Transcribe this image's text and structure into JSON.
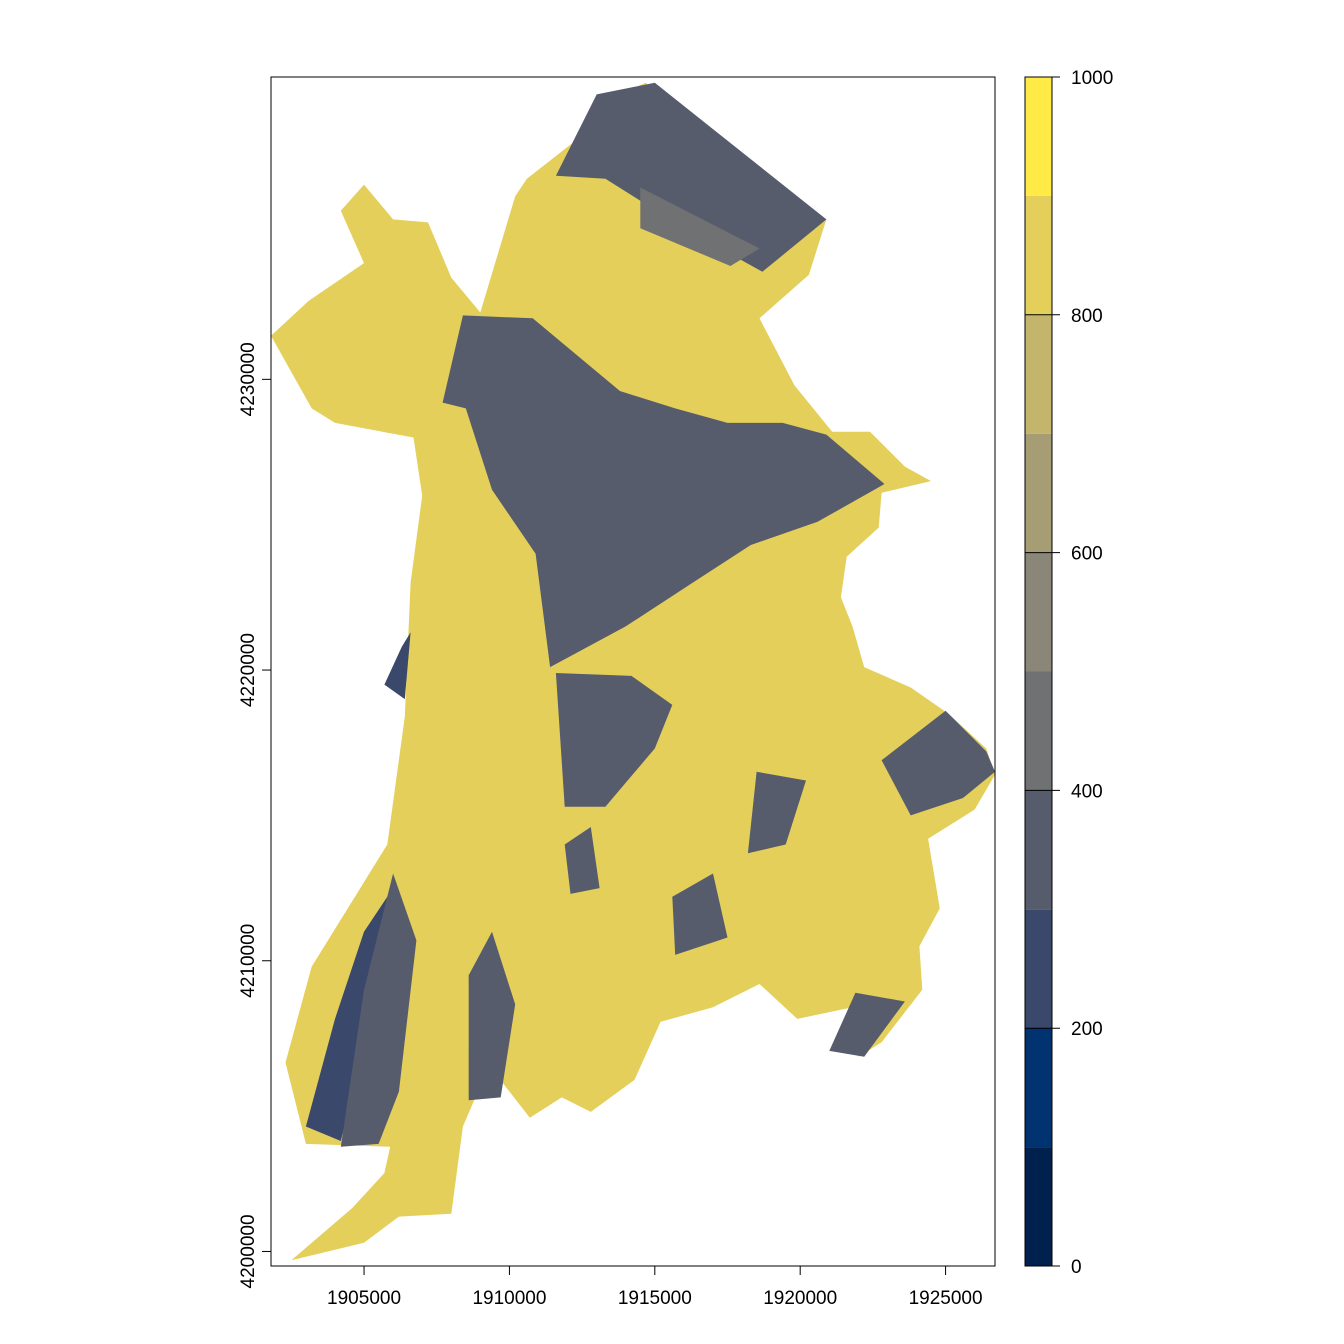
{
  "chart_data": {
    "type": "heatmap",
    "title": "",
    "xlabel": "",
    "ylabel": "",
    "grid": false,
    "legend": "right",
    "xlim": [
      1901800,
      1926700
    ],
    "ylim": [
      4199500,
      4240400
    ],
    "x_ticks": [
      1905000,
      1910000,
      1915000,
      1920000,
      1925000
    ],
    "y_ticks": [
      4200000,
      4210000,
      4220000,
      4230000
    ],
    "x_tick_labels": [
      "1905000",
      "1910000",
      "1915000",
      "1920000",
      "1925000"
    ],
    "y_tick_labels": [
      "4200000",
      "4210000",
      "4220000",
      "4230000"
    ],
    "colorbar": {
      "range": [
        0,
        1000
      ],
      "ticks": [
        0,
        200,
        400,
        600,
        800,
        1000
      ],
      "tick_labels": [
        "0",
        "200",
        "400",
        "600",
        "800",
        "1000"
      ],
      "breaks": [
        0,
        100,
        200,
        300,
        400,
        500,
        600,
        700,
        800,
        900,
        1000
      ],
      "colors": [
        "#00204D",
        "#00336F",
        "#39486B",
        "#575C6D",
        "#707173",
        "#8A8779",
        "#A69D75",
        "#C4B56C",
        "#E4CF5B",
        "#FFEA46"
      ]
    },
    "region_outline": [
      [
        1902500,
        4199700
      ],
      [
        1904600,
        4201500
      ],
      [
        1905700,
        4202700
      ],
      [
        1905900,
        4203600
      ],
      [
        1903000,
        4203700
      ],
      [
        1902300,
        4206500
      ],
      [
        1903200,
        4209800
      ],
      [
        1905800,
        4214000
      ],
      [
        1906400,
        4218400
      ],
      [
        1906600,
        4223000
      ],
      [
        1907000,
        4226000
      ],
      [
        1906700,
        4228000
      ],
      [
        1904000,
        4228500
      ],
      [
        1903200,
        4229000
      ],
      [
        1901800,
        4231500
      ],
      [
        1903100,
        4232700
      ],
      [
        1905000,
        4234000
      ],
      [
        1904200,
        4235800
      ],
      [
        1905000,
        4236700
      ],
      [
        1906000,
        4235500
      ],
      [
        1907200,
        4235400
      ],
      [
        1908000,
        4233500
      ],
      [
        1909000,
        4232300
      ],
      [
        1910200,
        4236300
      ],
      [
        1910600,
        4236900
      ],
      [
        1912900,
        4238700
      ],
      [
        1913700,
        4239800
      ],
      [
        1914700,
        4240200
      ],
      [
        1915000,
        4239700
      ],
      [
        1915200,
        4237800
      ],
      [
        1916600,
        4237000
      ],
      [
        1918900,
        4236100
      ],
      [
        1920900,
        4235500
      ],
      [
        1920300,
        4233600
      ],
      [
        1918600,
        4232100
      ],
      [
        1919800,
        4229800
      ],
      [
        1921100,
        4228200
      ],
      [
        1922400,
        4228200
      ],
      [
        1923600,
        4227000
      ],
      [
        1924500,
        4226500
      ],
      [
        1922800,
        4226100
      ],
      [
        1922700,
        4224900
      ],
      [
        1921600,
        4223900
      ],
      [
        1921400,
        4222500
      ],
      [
        1921800,
        4221500
      ],
      [
        1922200,
        4220100
      ],
      [
        1923800,
        4219400
      ],
      [
        1925100,
        4218500
      ],
      [
        1926400,
        4217300
      ],
      [
        1926700,
        4216400
      ],
      [
        1926000,
        4215200
      ],
      [
        1924400,
        4214200
      ],
      [
        1924800,
        4211800
      ],
      [
        1924100,
        4210500
      ],
      [
        1924200,
        4209000
      ],
      [
        1922800,
        4207200
      ],
      [
        1922000,
        4206700
      ],
      [
        1921800,
        4208400
      ],
      [
        1919900,
        4208000
      ],
      [
        1918600,
        4209200
      ],
      [
        1917000,
        4208400
      ],
      [
        1915200,
        4207900
      ],
      [
        1914300,
        4205900
      ],
      [
        1912800,
        4204800
      ],
      [
        1911800,
        4205300
      ],
      [
        1910700,
        4204600
      ],
      [
        1909300,
        4206400
      ],
      [
        1908400,
        4204300
      ],
      [
        1908000,
        4201300
      ],
      [
        1906200,
        4201200
      ],
      [
        1905000,
        4200300
      ],
      [
        1902500,
        4199700
      ]
    ],
    "regions": [
      {
        "value": 350,
        "points": [
          [
            1913000,
            4239800
          ],
          [
            1915000,
            4240200
          ],
          [
            1920900,
            4235500
          ],
          [
            1918700,
            4233700
          ],
          [
            1916000,
            4235200
          ],
          [
            1913300,
            4236900
          ],
          [
            1911600,
            4237000
          ]
        ]
      },
      {
        "value": 420,
        "points": [
          [
            1914500,
            4236600
          ],
          [
            1918600,
            4234500
          ],
          [
            1917600,
            4233900
          ],
          [
            1914500,
            4235200
          ]
        ]
      },
      {
        "value": 350,
        "points": [
          [
            1908400,
            4232200
          ],
          [
            1910800,
            4232100
          ],
          [
            1913800,
            4229600
          ],
          [
            1915700,
            4229000
          ],
          [
            1917500,
            4228500
          ],
          [
            1919400,
            4228500
          ],
          [
            1920900,
            4228100
          ],
          [
            1922900,
            4226400
          ],
          [
            1920600,
            4225100
          ],
          [
            1918300,
            4224300
          ],
          [
            1916300,
            4223000
          ],
          [
            1914000,
            4221500
          ],
          [
            1911400,
            4220100
          ],
          [
            1910900,
            4224000
          ],
          [
            1909400,
            4226200
          ],
          [
            1908500,
            4229000
          ],
          [
            1907700,
            4229200
          ]
        ]
      },
      {
        "value": 350,
        "points": [
          [
            1911600,
            4219900
          ],
          [
            1914200,
            4219800
          ],
          [
            1915600,
            4218800
          ],
          [
            1915000,
            4217300
          ],
          [
            1913300,
            4215300
          ],
          [
            1911900,
            4215300
          ]
        ]
      },
      {
        "value": 330,
        "points": [
          [
            1922800,
            4216900
          ],
          [
            1925000,
            4218600
          ],
          [
            1926400,
            4217200
          ],
          [
            1926700,
            4216500
          ],
          [
            1925600,
            4215600
          ],
          [
            1923800,
            4215000
          ]
        ]
      },
      {
        "value": 260,
        "points": [
          [
            1905700,
            4219500
          ],
          [
            1906400,
            4219000
          ],
          [
            1906600,
            4221300
          ],
          [
            1906300,
            4220800
          ]
        ]
      },
      {
        "value": 250,
        "points": [
          [
            1903000,
            4204300
          ],
          [
            1904200,
            4203800
          ],
          [
            1905000,
            4207000
          ],
          [
            1906000,
            4212500
          ],
          [
            1905000,
            4211000
          ],
          [
            1904000,
            4208000
          ]
        ]
      },
      {
        "value": 380,
        "points": [
          [
            1904200,
            4203600
          ],
          [
            1905500,
            4203700
          ],
          [
            1906200,
            4205500
          ],
          [
            1906800,
            4210700
          ],
          [
            1906000,
            4213000
          ],
          [
            1905000,
            4209000
          ]
        ]
      },
      {
        "value": 380,
        "points": [
          [
            1921000,
            4206900
          ],
          [
            1922200,
            4206700
          ],
          [
            1923600,
            4208600
          ],
          [
            1921900,
            4208900
          ]
        ]
      },
      {
        "value": 360,
        "points": [
          [
            1908600,
            4205200
          ],
          [
            1909700,
            4205300
          ],
          [
            1910200,
            4208500
          ],
          [
            1909400,
            4211000
          ],
          [
            1908600,
            4209500
          ]
        ]
      },
      {
        "value": 360,
        "points": [
          [
            1915700,
            4210200
          ],
          [
            1917500,
            4210800
          ],
          [
            1917000,
            4213000
          ],
          [
            1915600,
            4212200
          ]
        ]
      },
      {
        "value": 350,
        "points": [
          [
            1918200,
            4213700
          ],
          [
            1919500,
            4214000
          ],
          [
            1920200,
            4216200
          ],
          [
            1918500,
            4216500
          ]
        ]
      },
      {
        "value": 360,
        "points": [
          [
            1912100,
            4212300
          ],
          [
            1913100,
            4212500
          ],
          [
            1912800,
            4214600
          ],
          [
            1911900,
            4214000
          ]
        ]
      }
    ]
  }
}
